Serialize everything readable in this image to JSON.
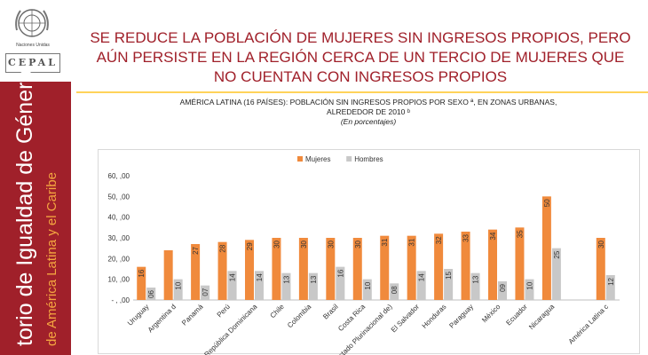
{
  "header": {
    "title_lines": [
      "SE REDUCE LA POBLACIÓN DE MUJERES SIN INGRESOS PROPIOS, PERO",
      "AÚN PERSISTE EN LA REGIÓN CERCA DE UN TERCIO DE MUJERES QUE",
      "NO CUENTAN CON INGRESOS PROPIOS"
    ]
  },
  "sidebar": {
    "un_label": "Naciones Unidas",
    "cepal": "CEPAL",
    "vertical_title": "torio de Igualdad de Género",
    "vertical_subtitle": "de América Latina y el Caribe"
  },
  "colors": {
    "brand": "#a0202a",
    "accent": "#f4a640",
    "mujeres": "#f08a3c",
    "hombres": "#c8c8c8"
  },
  "chart_data": {
    "type": "bar",
    "title_line1": "AMÉRICA LATINA (16 PAÍSES): POBLACIÓN SIN INGRESOS PROPIOS POR SEXO ª, EN  ZONAS URBANAS,",
    "title_line2": "ALREDEDOR DE 2010 ᵇ",
    "subtitle": "(En porcentajes)",
    "ylim": [
      0,
      60
    ],
    "yticks": [
      "- , ,00",
      "10, ,00",
      "20, ,00",
      "30, ,00",
      "40, ,00",
      "50, ,00",
      "60, ,00"
    ],
    "categories": [
      "Uruguay",
      "Argentina d",
      "Panamá",
      "Perú",
      "República Dominicana",
      "Chile",
      "Colombia",
      "Brasil",
      "Costa Rica",
      "Estado Plurinacional de)",
      "El Salvador",
      "Honduras",
      "Paraguay",
      "México",
      "Ecuador",
      "Nicaragua",
      "",
      "América Latina c"
    ],
    "series": [
      {
        "name": "Mujeres",
        "values": [
          16,
          24,
          27,
          28,
          29,
          30,
          30,
          30,
          30,
          31,
          31,
          32,
          33,
          34,
          35,
          50,
          null,
          30
        ],
        "labels": [
          "16",
          "",
          "27",
          "28",
          "29",
          "30",
          "30",
          "30",
          "30",
          "31",
          "31",
          "32",
          "33",
          "34",
          "35",
          "50",
          "",
          "30"
        ]
      },
      {
        "name": "Hombres",
        "values": [
          6,
          10,
          7,
          14,
          14,
          13,
          13,
          16,
          10,
          8,
          14,
          15,
          13,
          9,
          10,
          25,
          null,
          12
        ],
        "labels": [
          "06",
          "10",
          "07",
          "14",
          "14",
          "13",
          "13",
          "16",
          "10",
          "08",
          "14",
          "15",
          "13",
          "09",
          "10",
          "25",
          "",
          "12"
        ]
      }
    ],
    "legend_position": "top"
  }
}
